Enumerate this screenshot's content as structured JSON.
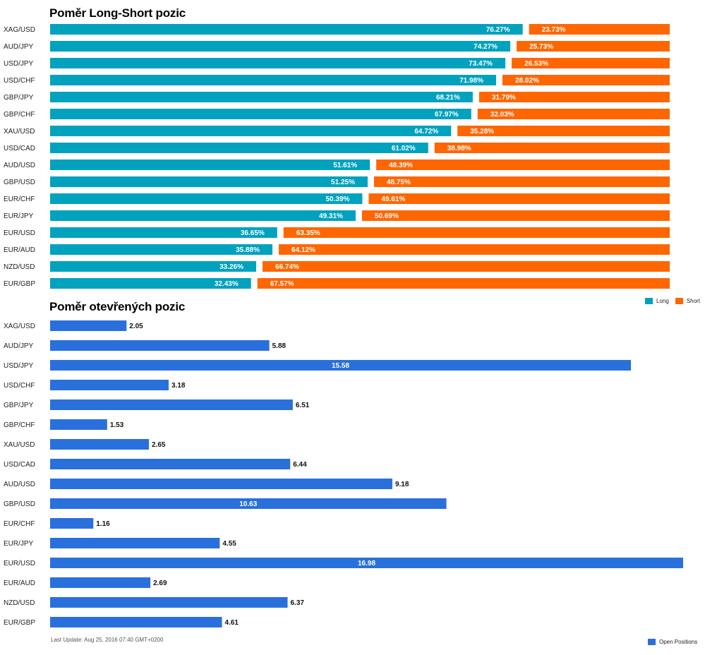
{
  "colors": {
    "long": "#00a2bd",
    "short": "#ff6600",
    "open": "#2a70dc"
  },
  "chart_data": [
    {
      "type": "bar",
      "orientation": "horizontal",
      "stacked": true,
      "title": "Poměr Long-Short pozic",
      "categories": [
        "XAG/USD",
        "AUD/JPY",
        "USD/JPY",
        "USD/CHF",
        "GBP/JPY",
        "GBP/CHF",
        "XAU/USD",
        "USD/CAD",
        "AUD/USD",
        "GBP/USD",
        "EUR/CHF",
        "EUR/JPY",
        "EUR/USD",
        "EUR/AUD",
        "NZD/USD",
        "EUR/GBP"
      ],
      "series": [
        {
          "name": "Long",
          "values": [
            76.27,
            74.27,
            73.47,
            71.98,
            68.21,
            67.97,
            64.72,
            61.02,
            51.61,
            51.25,
            50.39,
            49.31,
            36.65,
            35.88,
            33.26,
            32.43
          ]
        },
        {
          "name": "Short",
          "values": [
            23.73,
            25.73,
            26.53,
            28.02,
            31.79,
            32.03,
            35.28,
            38.98,
            48.39,
            48.75,
            49.61,
            50.69,
            63.35,
            64.12,
            66.74,
            67.57
          ]
        }
      ],
      "value_labels": {
        "long": [
          "76.27%",
          "74.27%",
          "73.47%",
          "71.98%",
          "68.21%",
          "67.97%",
          "64.72%",
          "61.02%",
          "51.61%",
          "51.25%",
          "50.39%",
          "49.31%",
          "36.65%",
          "35.88%",
          "33.26%",
          "32.43%"
        ],
        "short": [
          "23.73%",
          "25.73%",
          "26.53%",
          "28.02%",
          "31.79%",
          "32.03%",
          "35.28%",
          "38.98%",
          "48.39%",
          "48.75%",
          "49.61%",
          "50.69%",
          "63.35%",
          "64.12%",
          "66.74%",
          "67.57%"
        ]
      },
      "xlim": [
        0,
        100
      ],
      "legend": "bottom-right"
    },
    {
      "type": "bar",
      "orientation": "horizontal",
      "title": "Poměr otevřených pozic",
      "categories": [
        "XAG/USD",
        "AUD/JPY",
        "USD/JPY",
        "USD/CHF",
        "GBP/JPY",
        "GBP/CHF",
        "XAU/USD",
        "USD/CAD",
        "AUD/USD",
        "GBP/USD",
        "EUR/CHF",
        "EUR/JPY",
        "EUR/USD",
        "EUR/AUD",
        "NZD/USD",
        "EUR/GBP"
      ],
      "series": [
        {
          "name": "Open Positions",
          "values": [
            2.05,
            5.88,
            15.58,
            3.18,
            6.51,
            1.53,
            2.65,
            6.44,
            9.18,
            10.63,
            1.16,
            4.55,
            16.98,
            2.69,
            6.37,
            4.61
          ]
        }
      ],
      "value_labels": [
        "2.05",
        "5.88",
        "15.58",
        "3.18",
        "6.51",
        "1.53",
        "2.65",
        "6.44",
        "9.18",
        "10.63",
        "1.16",
        "4.55",
        "16.98",
        "2.69",
        "6.37",
        "4.61"
      ],
      "xlim": [
        0,
        16.98
      ],
      "legend": "bottom-right"
    }
  ],
  "legend": {
    "long_label": "Long",
    "short_label": "Short",
    "open_label": "Open Positions"
  },
  "footer": {
    "last_update": "Last Update: Aug 25, 2016 07:40 GMT+0200"
  }
}
